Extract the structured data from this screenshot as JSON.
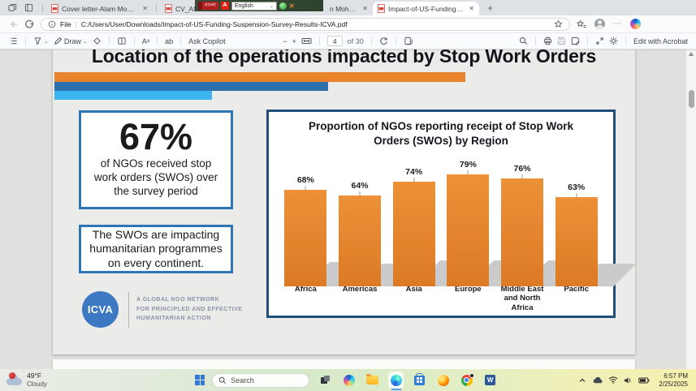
{
  "browser": {
    "tabs": [
      {
        "title": "Cover letter-Alam Mohammed N"
      },
      {
        "title": "CV_Alam Mo"
      },
      {
        "title": "n Mohammed N"
      },
      {
        "title": "Impact-of-US-Funding-Suspensio",
        "active": true
      }
    ],
    "new_tab": "+",
    "overlay": {
      "flag_text": "বাংলা",
      "acrobat": "A",
      "language": "English",
      "close": "✕"
    },
    "address": {
      "scheme_label": "File",
      "url": "C:/Users/User/Downloads/Impact-of-US-Funding-Suspension-Survey-Results-ICVA.pdf"
    }
  },
  "pdf_toolbar": {
    "draw_label": "Draw",
    "ask_copilot": "Ask Copilot",
    "zoom_out": "−",
    "zoom_in": "+",
    "page_number": "4",
    "page_count_label": "of 30",
    "edit_label": "Edit with Acrobat",
    "text_size_glyph": "Aᵃ",
    "translate_glyph": "ab"
  },
  "document": {
    "title": "Location of the operations impacted by Stop Work Orders",
    "stat_box": {
      "value": "67%",
      "text": "of NGOs received stop work orders (SWOs) over the survey period"
    },
    "continent_box": "The SWOs are impacting humanitarian programmes on every continent.",
    "logo": {
      "name": "ICVA",
      "tagline_lines": [
        "A GLOBAL NGO NETWORK",
        "FOR PRINCIPLED AND EFFECTIVE",
        "HUMANITARIAN ACTION"
      ]
    }
  },
  "chart_data": {
    "type": "bar",
    "title": "Proportion of NGOs reporting receipt of Stop Work Orders (SWOs) by Region",
    "categories": [
      "Africa",
      "Americas",
      "Asia",
      "Europe",
      "Middle East and North Africa",
      "Pacific"
    ],
    "values": [
      68,
      64,
      74,
      79,
      76,
      63
    ],
    "data_labels": [
      "68%",
      "64%",
      "74%",
      "79%",
      "76%",
      "63%"
    ],
    "unit": "%",
    "ylim": [
      0,
      100
    ],
    "grid": false,
    "legend": false,
    "bar_color": "#E0802D"
  },
  "taskbar": {
    "weather": {
      "temp": "49°F",
      "condition": "Cloudy"
    },
    "search_placeholder": "Search",
    "clock": {
      "time": "6:57 PM",
      "date": "2/25/2025"
    }
  },
  "colors": {
    "accent_orange": "#E8832C",
    "bar_dark_blue": "#2E6FAD",
    "bar_light_blue": "#3BB4EF",
    "box_border_blue": "#2E75B6",
    "chart_border_blue": "#1F4E79",
    "logo_blue": "#3C79C2"
  }
}
